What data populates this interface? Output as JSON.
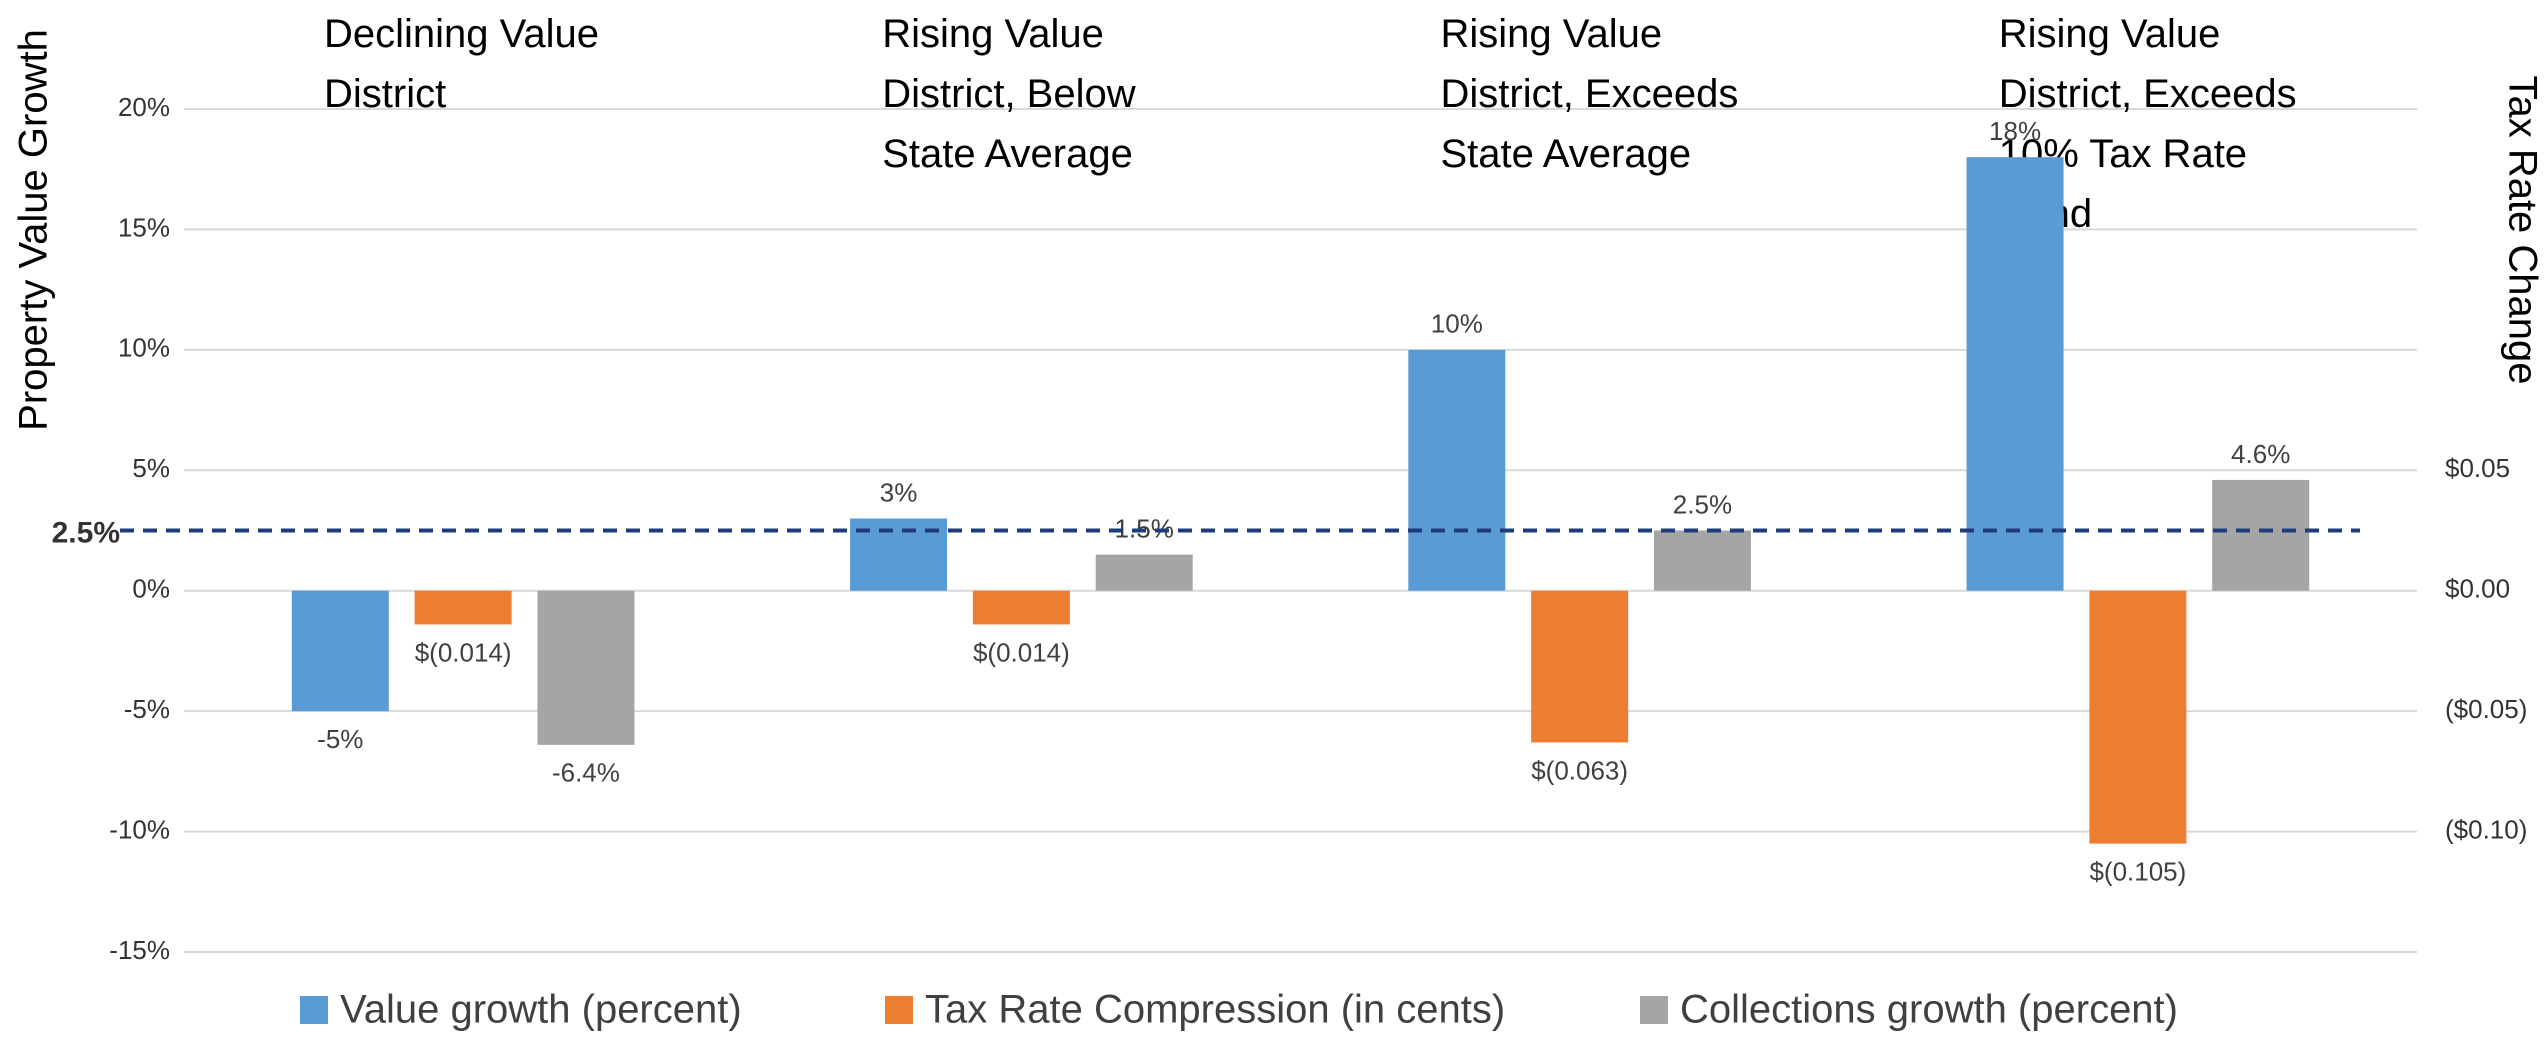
{
  "chart_data": {
    "type": "bar",
    "categories": [
      "Declining Value District",
      "Rising Value District, Below State Average",
      "Rising Value District, Exceeds State Average",
      "Rising Value District, Exceeds 10% Tax Rate Band"
    ],
    "ylabel": "Property Value Growth",
    "y2label": "Tax Rate Change",
    "ylim": [
      -15,
      20
    ],
    "yticks": [
      {
        "value": -15,
        "label": "-15%"
      },
      {
        "value": -10,
        "label": "-10%"
      },
      {
        "value": -5,
        "label": "-5%"
      },
      {
        "value": 0,
        "label": "0%"
      },
      {
        "value": 5,
        "label": "5%"
      },
      {
        "value": 10,
        "label": "10%"
      },
      {
        "value": 15,
        "label": "15%"
      },
      {
        "value": 20,
        "label": "20%"
      }
    ],
    "y2lim": [
      -0.15,
      0.2
    ],
    "y2ticks": [
      {
        "value": -0.1,
        "label": "($0.10)"
      },
      {
        "value": -0.05,
        "label": "($0.05)"
      },
      {
        "value": 0,
        "label": "$0.00"
      },
      {
        "value": 0.05,
        "label": "$0.05"
      }
    ],
    "grid": true,
    "legend": "bottom",
    "reference_line": {
      "value": 2.5,
      "label": "2.5%",
      "color": "#1f3b7a"
    },
    "series": [
      {
        "name": "Value growth (percent)",
        "color": "#5b9bd5",
        "values": [
          -5,
          3,
          10,
          18
        ],
        "value_labels": [
          "-5%",
          "3%",
          "10%",
          "18%"
        ]
      },
      {
        "name": "Tax Rate Compression (in cents)",
        "color": "#ed7d31",
        "axis": "y2",
        "values": [
          -0.014,
          -0.014,
          -0.063,
          -0.105
        ],
        "value_labels": [
          "$(0.014)",
          "$(0.014)",
          "$(0.063)",
          "$(0.105)"
        ]
      },
      {
        "name": "Collections growth (percent)",
        "color": "#a5a5a5",
        "values": [
          -6.4,
          1.5,
          2.5,
          4.6
        ],
        "value_labels": [
          "-6.4%",
          "1.5%",
          "2.5%",
          "4.6%"
        ]
      }
    ]
  }
}
